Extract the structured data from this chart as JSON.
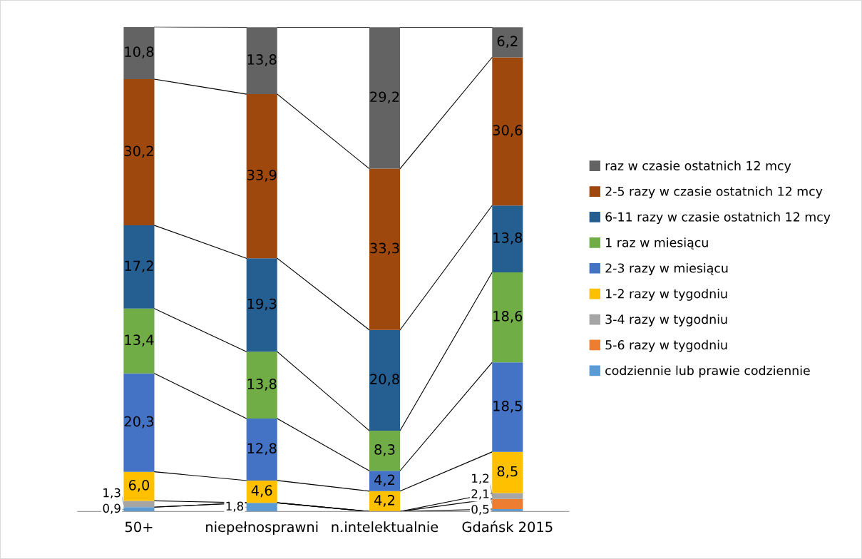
{
  "chart_data": {
    "type": "bar",
    "stacked": true,
    "legend": "right",
    "grid": false,
    "categories": [
      "50+",
      "niepełnosprawni",
      "n.intelektualnie",
      "Gdańsk 2015"
    ],
    "series": [
      {
        "name": "codziennie lub prawie codziennie",
        "color": "#5b9bd5",
        "values": [
          0.9,
          1.8,
          null,
          0.5
        ],
        "value_labels": [
          "0,9",
          "1,8",
          null,
          "0,5"
        ]
      },
      {
        "name": "5-6 razy w tygodniu",
        "color": "#ed7d31",
        "values": [
          null,
          null,
          null,
          2.1
        ],
        "value_labels": [
          null,
          null,
          null,
          "2,1"
        ]
      },
      {
        "name": "3-4 razy w tygodniu",
        "color": "#a5a5a5",
        "values": [
          1.3,
          null,
          null,
          1.2
        ],
        "value_labels": [
          "1,3",
          null,
          null,
          "1,2"
        ]
      },
      {
        "name": "1-2 razy w tygodniu",
        "color": "#ffc000",
        "values": [
          6.0,
          4.6,
          4.2,
          8.5
        ],
        "value_labels": [
          "6,0",
          "4,6",
          "4,2",
          "8,5"
        ]
      },
      {
        "name": "2-3 razy w miesiącu",
        "color": "#4472c4",
        "values": [
          20.3,
          12.8,
          4.2,
          18.5
        ],
        "value_labels": [
          "20,3",
          "12,8",
          "4,2",
          "18,5"
        ]
      },
      {
        "name": "1 raz w miesiącu",
        "color": "#70ad47",
        "values": [
          13.4,
          13.8,
          8.3,
          18.6
        ],
        "value_labels": [
          "13,4",
          "13,8",
          "8,3",
          "18,6"
        ]
      },
      {
        "name": "6-11 razy w czasie ostatnich 12 mcy",
        "color": "#255e91",
        "values": [
          17.2,
          19.3,
          20.8,
          13.8
        ],
        "value_labels": [
          "17,2",
          "19,3",
          "20,8",
          "13,8"
        ]
      },
      {
        "name": "2-5 razy w czasie ostatnich 12 mcy",
        "color": "#9e480e",
        "values": [
          30.2,
          33.9,
          33.3,
          30.6
        ],
        "value_labels": [
          "30,2",
          "33,9",
          "33,3",
          "30,6"
        ]
      },
      {
        "name": "raz w czasie ostatnich 12 mcy",
        "color": "#636363",
        "values": [
          10.8,
          13.8,
          29.2,
          6.2
        ],
        "value_labels": [
          "10,8",
          "13,8",
          "29,2",
          "6,2"
        ]
      }
    ]
  }
}
